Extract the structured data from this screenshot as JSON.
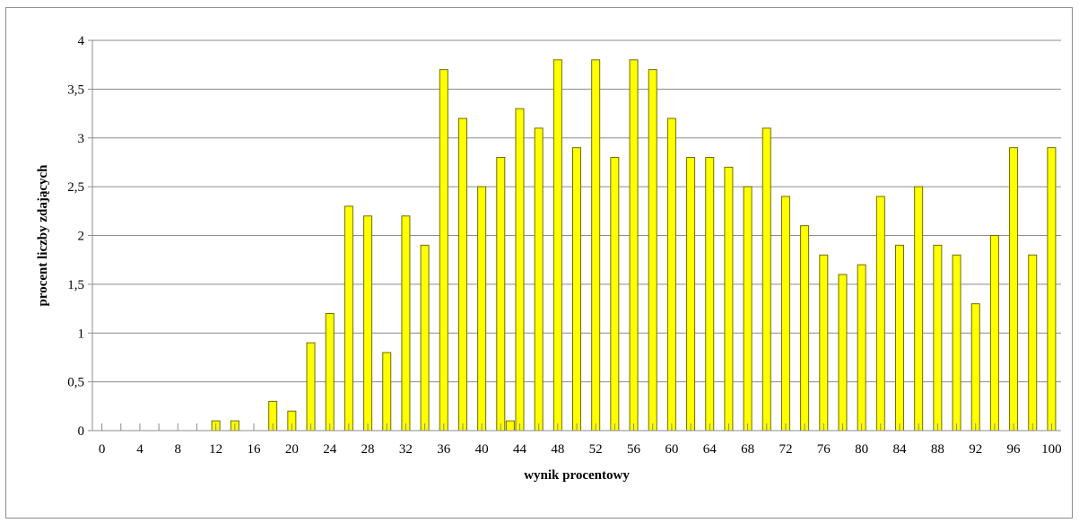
{
  "chart_data": {
    "type": "bar",
    "title": "",
    "xlabel": "wynik procentowy",
    "ylabel": "procent liczby zdających",
    "x": [
      0,
      2,
      4,
      6,
      8,
      10,
      12,
      14,
      16,
      18,
      20,
      22,
      24,
      26,
      28,
      30,
      32,
      34,
      36,
      38,
      40,
      42,
      43,
      44,
      46,
      48,
      50,
      52,
      54,
      56,
      58,
      60,
      62,
      64,
      66,
      68,
      70,
      72,
      74,
      76,
      78,
      80,
      82,
      84,
      86,
      88,
      90,
      92,
      94,
      96,
      98,
      100
    ],
    "values": [
      0,
      0,
      0,
      0,
      0,
      0,
      0.1,
      0.1,
      0,
      0.3,
      0.2,
      0.9,
      1.2,
      2.3,
      2.2,
      0.8,
      2.2,
      1.9,
      3.7,
      3.2,
      2.5,
      2.8,
      0.1,
      3.3,
      3.1,
      3.8,
      2.9,
      3.8,
      2.8,
      3.8,
      3.7,
      3.2,
      2.8,
      2.8,
      2.7,
      2.5,
      3.1,
      2.4,
      2.1,
      1.8,
      1.6,
      1.7,
      2.4,
      1.9,
      2.5,
      1.9,
      1.8,
      1.3,
      2.0,
      2.9,
      1.8,
      2.9
    ],
    "x_ticks": [
      "0",
      "4",
      "8",
      "12",
      "16",
      "20",
      "24",
      "28",
      "32",
      "36",
      "40",
      "44",
      "48",
      "52",
      "56",
      "60",
      "64",
      "68",
      "72",
      "76",
      "80",
      "84",
      "88",
      "92",
      "96",
      "100"
    ],
    "y_ticks": [
      "0",
      "0,5",
      "1",
      "1,5",
      "2",
      "2,5",
      "3",
      "3,5",
      "4"
    ],
    "ylim": [
      0,
      4
    ],
    "xlim": [
      0,
      100
    ],
    "grid": true,
    "legend": "none",
    "colors": {
      "bar_fill": "#ffff00",
      "bar_stroke": "#6e6e00",
      "grid": "#8c8c8c",
      "axis": "#8c8c8c"
    }
  }
}
